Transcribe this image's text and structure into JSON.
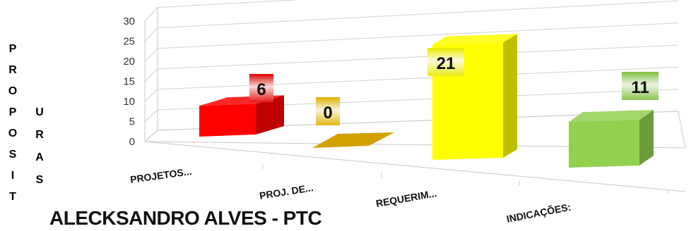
{
  "chart_data": {
    "type": "bar",
    "title": "",
    "ylabel": "PROPOSITURAS",
    "xlabel": "",
    "categories": [
      "PROJETOS...",
      "PROJ. DE...",
      "REQUERIM...",
      "INDICAÇÕES:"
    ],
    "series": [
      {
        "values": [
          6,
          0,
          21,
          11
        ]
      }
    ],
    "ylim": [
      0,
      30
    ],
    "yticks": [
      0,
      5,
      10,
      15,
      20,
      25,
      30
    ],
    "grid": true,
    "legend": "none",
    "style": "3d-perspective",
    "bar_colors": [
      "#ff0000",
      "#d4a000",
      "#ffff00",
      "#92d050"
    ],
    "label_bg_colors": [
      "#e00000",
      "#e0b000",
      "#e8e800",
      "#7fbf3f"
    ]
  },
  "footer": {
    "title": "ALECKSANDRO ALVES - PTC"
  }
}
